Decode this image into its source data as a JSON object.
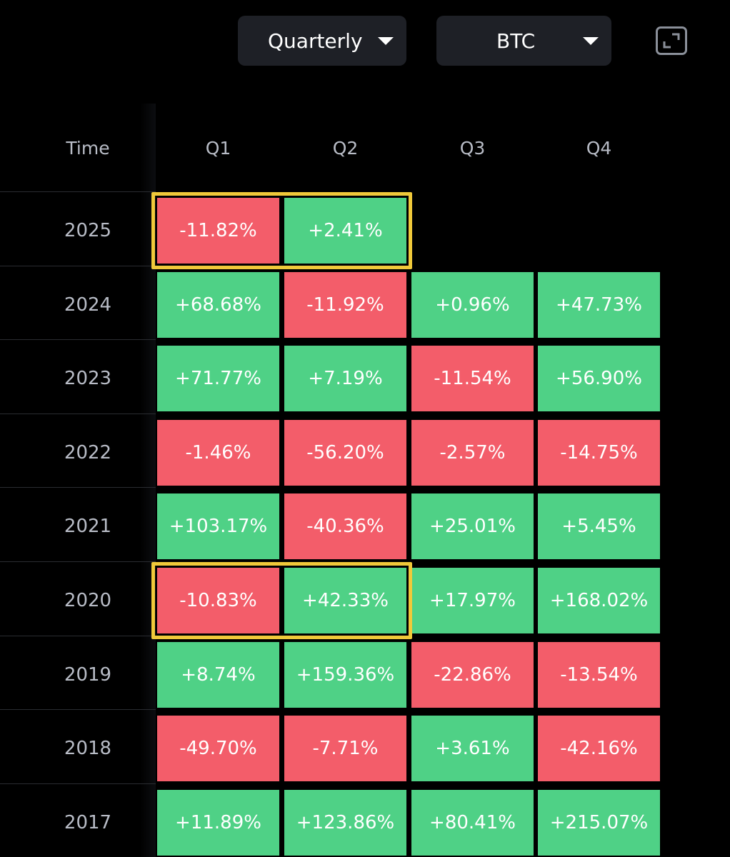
{
  "controls": {
    "period": {
      "label": "Quarterly"
    },
    "asset": {
      "label": "BTC"
    },
    "fullscreen_icon": "expand-icon"
  },
  "colors": {
    "positive": "#4fd186",
    "negative": "#f35d6a",
    "highlight": "#f0c93a",
    "background": "#000000"
  },
  "chart_data": {
    "type": "heatmap",
    "row_header": "Time",
    "columns": [
      "Q1",
      "Q2",
      "Q3",
      "Q4"
    ],
    "rows": [
      {
        "year": "2025",
        "values": [
          -11.82,
          2.41,
          null,
          null
        ],
        "labels": [
          "-11.82%",
          "+2.41%",
          "",
          ""
        ]
      },
      {
        "year": "2024",
        "values": [
          68.68,
          -11.92,
          0.96,
          47.73
        ],
        "labels": [
          "+68.68%",
          "-11.92%",
          "+0.96%",
          "+47.73%"
        ]
      },
      {
        "year": "2023",
        "values": [
          71.77,
          7.19,
          -11.54,
          56.9
        ],
        "labels": [
          "+71.77%",
          "+7.19%",
          "-11.54%",
          "+56.90%"
        ]
      },
      {
        "year": "2022",
        "values": [
          -1.46,
          -56.2,
          -2.57,
          -14.75
        ],
        "labels": [
          "-1.46%",
          "-56.20%",
          "-2.57%",
          "-14.75%"
        ]
      },
      {
        "year": "2021",
        "values": [
          103.17,
          -40.36,
          25.01,
          5.45
        ],
        "labels": [
          "+103.17%",
          "-40.36%",
          "+25.01%",
          "+5.45%"
        ]
      },
      {
        "year": "2020",
        "values": [
          -10.83,
          42.33,
          17.97,
          168.02
        ],
        "labels": [
          "-10.83%",
          "+42.33%",
          "+17.97%",
          "+168.02%"
        ]
      },
      {
        "year": "2019",
        "values": [
          8.74,
          159.36,
          -22.86,
          -13.54
        ],
        "labels": [
          "+8.74%",
          "+159.36%",
          "-22.86%",
          "-13.54%"
        ]
      },
      {
        "year": "2018",
        "values": [
          -49.7,
          -7.71,
          3.61,
          -42.16
        ],
        "labels": [
          "-49.70%",
          "-7.71%",
          "+3.61%",
          "-42.16%"
        ]
      },
      {
        "year": "2017",
        "values": [
          11.89,
          123.86,
          80.41,
          215.07
        ],
        "labels": [
          "+11.89%",
          "+123.86%",
          "+80.41%",
          "+215.07%"
        ]
      }
    ],
    "highlighted": [
      {
        "year": "2025",
        "columns": [
          "Q1",
          "Q2"
        ]
      },
      {
        "year": "2020",
        "columns": [
          "Q1",
          "Q2"
        ]
      }
    ]
  }
}
